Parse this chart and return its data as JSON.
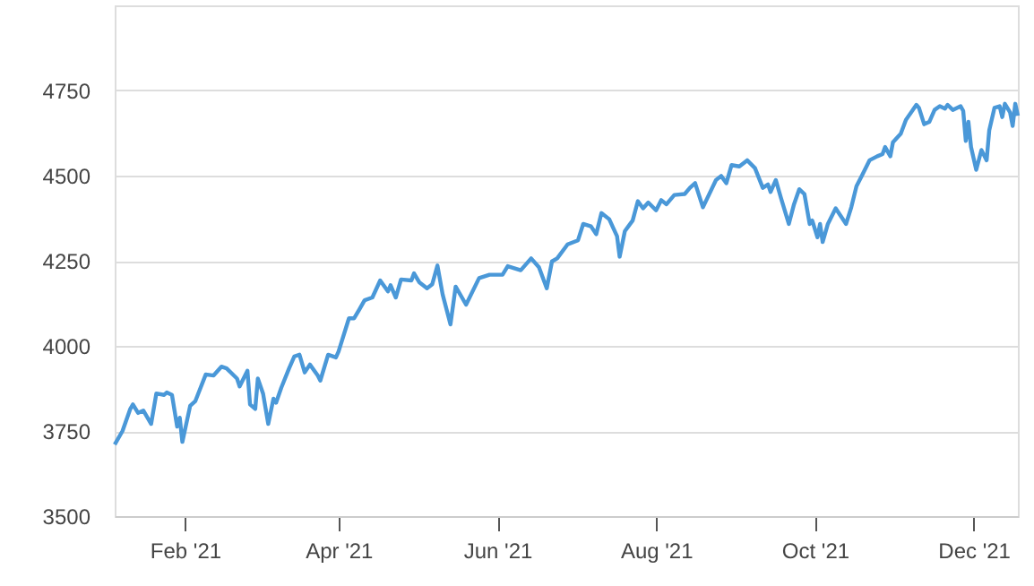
{
  "chart_data": {
    "type": "line",
    "x": [
      "2021-01-05",
      "2021-01-08",
      "2021-01-11",
      "2021-01-12",
      "2021-01-14",
      "2021-01-16",
      "2021-01-19",
      "2021-01-21",
      "2021-01-24",
      "2021-01-25",
      "2021-01-27",
      "2021-01-29",
      "2021-01-30",
      "2021-01-31",
      "2021-02-03",
      "2021-02-05",
      "2021-02-09",
      "2021-02-12",
      "2021-02-15",
      "2021-02-17",
      "2021-02-21",
      "2021-02-22",
      "2021-02-25",
      "2021-02-26",
      "2021-02-28",
      "2021-03-01",
      "2021-03-03",
      "2021-03-05",
      "2021-03-07",
      "2021-03-08",
      "2021-03-10",
      "2021-03-13",
      "2021-03-15",
      "2021-03-17",
      "2021-03-19",
      "2021-03-21",
      "2021-03-24",
      "2021-03-25",
      "2021-03-28",
      "2021-03-31",
      "2021-04-01",
      "2021-04-05",
      "2021-04-07",
      "2021-04-09",
      "2021-04-11",
      "2021-04-14",
      "2021-04-17",
      "2021-04-20",
      "2021-04-21",
      "2021-04-23",
      "2021-04-25",
      "2021-04-29",
      "2021-04-30",
      "2021-05-02",
      "2021-05-05",
      "2021-05-07",
      "2021-05-09",
      "2021-05-11",
      "2021-05-14",
      "2021-05-16",
      "2021-05-20",
      "2021-05-25",
      "2021-05-29",
      "2021-06-03",
      "2021-06-05",
      "2021-06-10",
      "2021-06-14",
      "2021-06-17",
      "2021-06-20",
      "2021-06-22",
      "2021-06-24",
      "2021-06-28",
      "2021-07-02",
      "2021-07-04",
      "2021-07-07",
      "2021-07-09",
      "2021-07-11",
      "2021-07-14",
      "2021-07-17",
      "2021-07-18",
      "2021-07-20",
      "2021-07-23",
      "2021-07-25",
      "2021-07-27",
      "2021-07-29",
      "2021-08-01",
      "2021-08-03",
      "2021-08-05",
      "2021-08-08",
      "2021-08-12",
      "2021-08-14",
      "2021-08-16",
      "2021-08-19",
      "2021-08-24",
      "2021-08-26",
      "2021-08-28",
      "2021-08-30",
      "2021-09-02",
      "2021-09-05",
      "2021-09-08",
      "2021-09-11",
      "2021-09-13",
      "2021-09-14",
      "2021-09-16",
      "2021-09-18",
      "2021-09-21",
      "2021-09-23",
      "2021-09-25",
      "2021-09-27",
      "2021-09-29",
      "2021-09-30",
      "2021-10-02",
      "2021-10-03",
      "2021-10-04",
      "2021-10-06",
      "2021-10-09",
      "2021-10-11",
      "2021-10-13",
      "2021-10-15",
      "2021-10-17",
      "2021-10-19",
      "2021-10-22",
      "2021-10-25",
      "2021-10-27",
      "2021-10-28",
      "2021-10-30",
      "2021-10-31",
      "2021-11-03",
      "2021-11-05",
      "2021-11-09",
      "2021-11-10",
      "2021-11-12",
      "2021-11-14",
      "2021-11-16",
      "2021-11-18",
      "2021-11-20",
      "2021-11-21",
      "2021-11-23",
      "2021-11-26",
      "2021-11-27",
      "2021-11-28",
      "2021-11-29",
      "2021-11-30",
      "2021-12-02",
      "2021-12-04",
      "2021-12-06",
      "2021-12-07",
      "2021-12-09",
      "2021-12-11",
      "2021-12-12",
      "2021-12-13",
      "2021-12-15",
      "2021-12-16",
      "2021-12-17",
      "2021-12-18"
    ],
    "series": [
      {
        "color": "#4a98d8",
        "values": [
          3710,
          3750,
          3815,
          3828,
          3803,
          3810,
          3771,
          3860,
          3856,
          3863,
          3856,
          3763,
          3789,
          3718,
          3824,
          3838,
          3916,
          3913,
          3939,
          3934,
          3904,
          3881,
          3927,
          3828,
          3815,
          3904,
          3860,
          3771,
          3845,
          3833,
          3877,
          3934,
          3969,
          3974,
          3922,
          3945,
          3913,
          3898,
          3974,
          3966,
          3983,
          4081,
          4081,
          4107,
          4134,
          4142,
          4192,
          4160,
          4178,
          4142,
          4195,
          4192,
          4213,
          4187,
          4169,
          4181,
          4236,
          4151,
          4063,
          4174,
          4121,
          4199,
          4209,
          4209,
          4234,
          4222,
          4257,
          4231,
          4169,
          4248,
          4257,
          4298,
          4310,
          4358,
          4351,
          4328,
          4390,
          4372,
          4322,
          4262,
          4337,
          4368,
          4425,
          4404,
          4421,
          4398,
          4428,
          4416,
          4443,
          4446,
          4464,
          4478,
          4407,
          4487,
          4499,
          4478,
          4531,
          4527,
          4545,
          4522,
          4464,
          4474,
          4452,
          4487,
          4434,
          4358,
          4416,
          4460,
          4446,
          4358,
          4368,
          4319,
          4358,
          4305,
          4358,
          4404,
          4381,
          4358,
          4407,
          4469,
          4499,
          4545,
          4557,
          4563,
          4584,
          4557,
          4598,
          4623,
          4664,
          4708,
          4699,
          4651,
          4658,
          4693,
          4704,
          4697,
          4708,
          4693,
          4704,
          4690,
          4602,
          4658,
          4584,
          4517,
          4575,
          4545,
          4633,
          4699,
          4704,
          4672,
          4711,
          4686,
          4646,
          4711,
          4676
        ]
      }
    ],
    "xlim": [
      "2021-01-05",
      "2021-12-18"
    ],
    "xticks": [
      {
        "value": "2021-02-01",
        "label": "Feb '21"
      },
      {
        "value": "2021-04-01",
        "label": "Apr '21"
      },
      {
        "value": "2021-06-01",
        "label": "Jun '21"
      },
      {
        "value": "2021-08-01",
        "label": "Aug '21"
      },
      {
        "value": "2021-10-01",
        "label": "Oct '21"
      },
      {
        "value": "2021-12-01",
        "label": "Dec '21"
      }
    ],
    "ylim": [
      3500,
      5000
    ],
    "yticks": [
      3500,
      3750,
      4000,
      4250,
      4500,
      4750,
      {
        "value": 5000,
        "label": null
      }
    ],
    "grid": "y",
    "marker": "none"
  }
}
